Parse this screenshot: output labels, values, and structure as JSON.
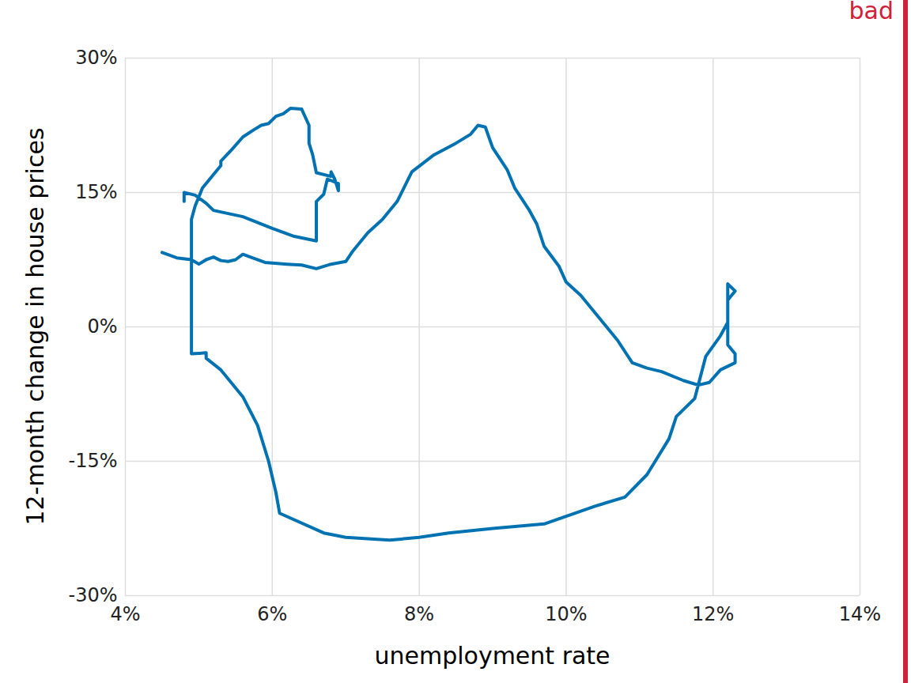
{
  "chart_data": {
    "type": "line",
    "x_label": "unemployment rate",
    "y_label": "12-month change in house prices",
    "annotation": "bad",
    "annotation_color": "#d02138",
    "color": "#0072b2",
    "grid": true,
    "x": [
      4.8,
      4.8,
      4.95,
      5.1,
      5.2,
      5.6,
      6.0,
      6.3,
      6.6,
      6.6,
      6.7,
      6.75,
      6.9,
      6.9,
      6.85,
      6.8,
      6.8,
      6.6,
      6.55,
      6.5,
      6.5,
      6.4,
      6.25,
      6.15,
      6.05,
      5.95,
      5.85,
      5.75,
      5.6,
      5.45,
      5.3,
      5.3,
      5.2,
      5.05,
      4.95,
      4.9,
      4.9,
      5.1,
      5.1,
      5.3,
      5.6,
      5.8,
      5.95,
      6.05,
      6.1,
      6.7,
      7.0,
      7.6,
      8.0,
      8.4,
      9.0,
      9.7,
      10.4,
      10.8,
      11.1,
      11.4,
      11.5,
      11.75,
      11.9,
      12.1,
      12.2,
      12.2,
      12.3,
      12.2,
      12.2,
      12.3,
      12.3,
      12.1,
      11.95,
      11.8,
      11.6,
      11.3,
      11.1,
      10.9,
      10.7,
      10.5,
      10.2,
      10.0,
      9.9,
      9.7,
      9.6,
      9.5,
      9.3,
      9.2,
      9.0,
      8.9,
      8.8,
      8.7,
      8.5,
      8.2,
      7.9,
      7.7,
      7.5,
      7.3,
      7.1,
      7.0,
      6.8,
      6.6,
      6.4,
      6.2,
      5.9,
      5.7,
      5.6,
      5.5,
      5.4,
      5.3,
      5.2,
      5.1,
      5.0,
      4.9,
      4.7,
      4.5
    ],
    "values": [
      14.0,
      15.0,
      14.7,
      13.8,
      13.0,
      12.3,
      11.0,
      10.1,
      9.6,
      14.0,
      14.8,
      16.5,
      16.0,
      15.2,
      16.5,
      17.3,
      16.8,
      17.2,
      19.2,
      20.5,
      22.5,
      24.3,
      24.4,
      23.8,
      23.5,
      22.7,
      22.5,
      22.0,
      21.2,
      19.8,
      18.5,
      18.0,
      17.0,
      15.5,
      13.5,
      12.0,
      -3.0,
      -2.9,
      -3.5,
      -4.8,
      -7.8,
      -11.0,
      -15.0,
      -18.5,
      -20.8,
      -23.0,
      -23.5,
      -23.8,
      -23.5,
      -23.0,
      -22.5,
      -22.0,
      -20.0,
      -19.0,
      -16.5,
      -12.5,
      -10.0,
      -8.0,
      -3.3,
      -1.0,
      0.5,
      4.8,
      4.0,
      3.0,
      -2.0,
      -3.0,
      -4.0,
      -4.8,
      -6.2,
      -6.5,
      -6.0,
      -5.0,
      -4.6,
      -4.0,
      -1.5,
      0.5,
      3.5,
      5.0,
      6.8,
      9.0,
      11.5,
      13.0,
      15.5,
      17.5,
      20.0,
      22.3,
      22.5,
      21.5,
      20.5,
      19.2,
      17.3,
      14.0,
      12.0,
      10.5,
      8.5,
      7.3,
      7.0,
      6.5,
      6.9,
      7.0,
      7.2,
      7.8,
      8.1,
      7.5,
      7.3,
      7.4,
      7.8,
      7.5,
      7.0,
      7.5,
      7.7,
      8.3
    ],
    "xlim": [
      4,
      14
    ],
    "ylim": [
      -30,
      30
    ],
    "xticks": [
      {
        "value": 4,
        "label": "4%"
      },
      {
        "value": 6,
        "label": "6%"
      },
      {
        "value": 8,
        "label": "8%"
      },
      {
        "value": 10,
        "label": "10%"
      },
      {
        "value": 12,
        "label": "12%"
      },
      {
        "value": 14,
        "label": "14%"
      }
    ],
    "yticks": [
      {
        "value": -30,
        "label": "-30%"
      },
      {
        "value": -15,
        "label": "-15%"
      },
      {
        "value": 0,
        "label": "0%"
      },
      {
        "value": 15,
        "label": "15%"
      },
      {
        "value": 30,
        "label": "30%"
      }
    ]
  }
}
